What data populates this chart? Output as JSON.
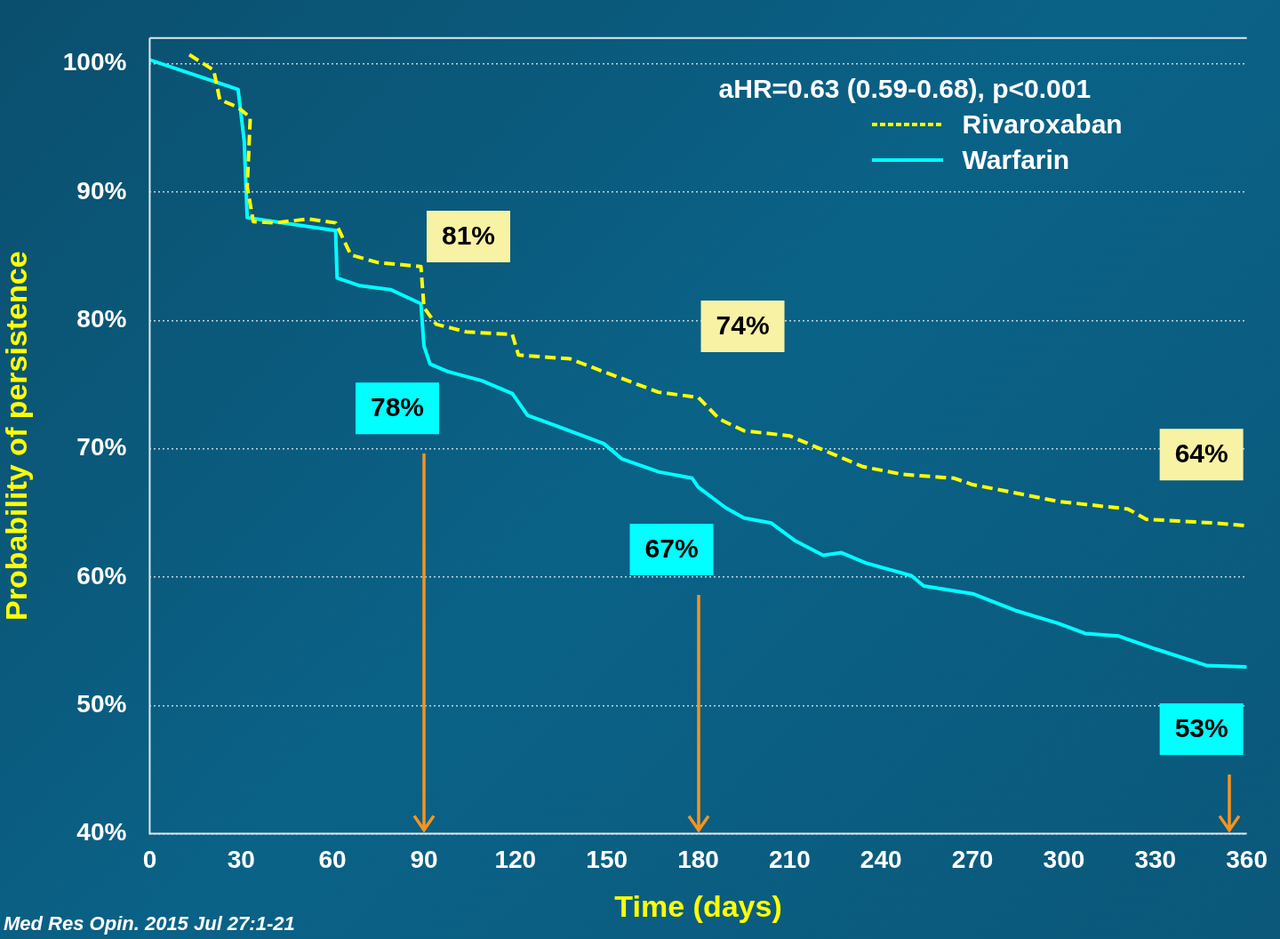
{
  "chart_data": {
    "type": "line",
    "xlabel": "Time (days)",
    "ylabel": "Probability of persistence",
    "legend_title": "aHR=0.63 (0.59-0.68), p<0.001",
    "xlim": [
      0,
      360
    ],
    "xticks": [
      0,
      30,
      60,
      90,
      120,
      150,
      180,
      210,
      240,
      270,
      300,
      330,
      360
    ],
    "ylim": [
      40,
      102
    ],
    "yticks": [
      {
        "value": 40,
        "label": "40%"
      },
      {
        "value": 50,
        "label": "50%"
      },
      {
        "value": 60,
        "label": "60%"
      },
      {
        "value": 70,
        "label": "70%"
      },
      {
        "value": 80,
        "label": "80%"
      },
      {
        "value": 90,
        "label": "90%"
      },
      {
        "value": 100,
        "label": "100%"
      }
    ],
    "grid": "y",
    "legend": "top right",
    "marker": "none",
    "series": [
      {
        "name": "Rivaroxaban",
        "color": "#ffff00",
        "line_style": "dashed",
        "x": [
          13,
          21,
          23,
          29,
          33,
          32,
          34,
          41,
          52,
          61,
          66,
          75,
          89,
          90,
          94,
          104,
          119,
          121,
          138,
          149,
          167,
          180,
          187,
          195,
          210,
          224,
          234,
          247,
          264,
          270,
          281,
          298,
          321,
          327,
          350,
          360
        ],
        "values": [
          100.7,
          99.5,
          97.2,
          96.6,
          95.8,
          90.4,
          87.7,
          87.6,
          87.9,
          87.6,
          85.1,
          84.5,
          84.2,
          81,
          79.7,
          79.1,
          78.9,
          77.3,
          77,
          76,
          74.4,
          74,
          72.3,
          71.4,
          71,
          69.6,
          68.6,
          68,
          67.7,
          67.2,
          66.7,
          65.9,
          65.3,
          64.5,
          64.2,
          64
        ]
      },
      {
        "name": "Warfarin",
        "color": "#00ffff",
        "line_style": "solid",
        "x": [
          0,
          29,
          31,
          32,
          61,
          61.5,
          69,
          79,
          89,
          90,
          92,
          98,
          109,
          119,
          124,
          132,
          149,
          155,
          167,
          178,
          180,
          189,
          195,
          204,
          212,
          221,
          227,
          235,
          250,
          254,
          270,
          284,
          298,
          307,
          318,
          330,
          347,
          360
        ],
        "values": [
          100.3,
          98,
          94,
          88,
          87,
          83.3,
          82.7,
          82.4,
          81.3,
          78,
          76.6,
          76,
          75.3,
          74.3,
          72.6,
          71.9,
          70.4,
          69.2,
          68.2,
          67.7,
          67,
          65.4,
          64.6,
          64.2,
          62.8,
          61.7,
          61.9,
          61.1,
          60.1,
          59.3,
          58.7,
          57.4,
          56.4,
          55.6,
          55.4,
          54.4,
          53.1,
          53
        ]
      }
    ],
    "annotations": [
      {
        "text": "81%",
        "x": 90,
        "y": 81
      },
      {
        "text": "74%",
        "x": 180,
        "y": 74
      },
      {
        "text": "64%",
        "x": 360,
        "y": 64
      },
      {
        "text": "78%",
        "x": 90,
        "y": 78
      },
      {
        "text": "67%",
        "x": 180,
        "y": 67
      },
      {
        "text": "53%",
        "x": 360,
        "y": 53
      },
      "Med Res Opin. 2015 Jul 27:1-21"
    ]
  }
}
